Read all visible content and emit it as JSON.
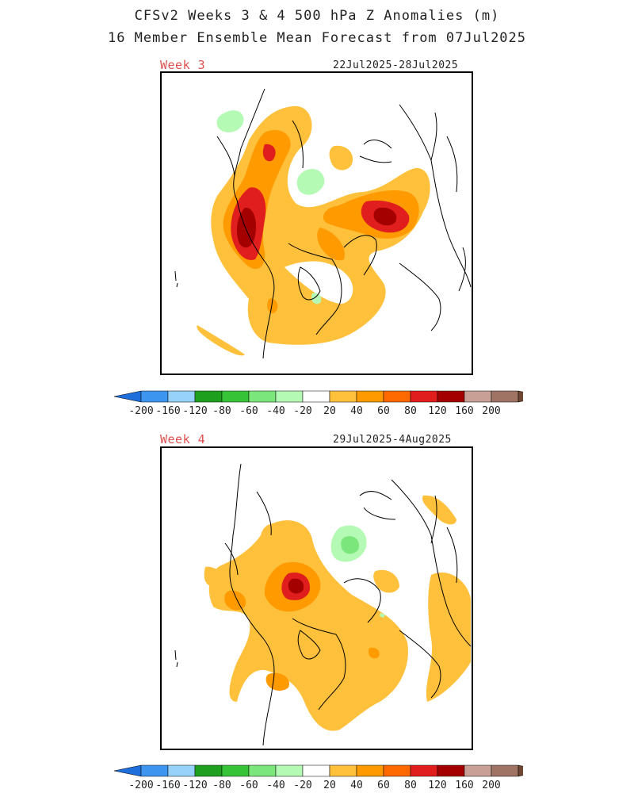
{
  "header": {
    "title_line1": "CFSv2 Weeks 3 & 4 500 hPa Z Anomalies (m)",
    "title_line2": "16 Member Ensemble Mean Forecast from 07Jul2025"
  },
  "panels": [
    {
      "label": "Week 3",
      "dates": "22Jul2025-28Jul2025"
    },
    {
      "label": "Week 4",
      "dates": "29Jul2025-4Aug2025"
    }
  ],
  "colorbar": {
    "ticks": [
      "-200",
      "-160",
      "-120",
      "-80",
      "-60",
      "-40",
      "-20",
      "20",
      "40",
      "60",
      "80",
      "120",
      "160",
      "200"
    ],
    "colors": [
      "#1e6edc",
      "#3c96f0",
      "#96d2fa",
      "#1ea01e",
      "#37c337",
      "#7be67b",
      "#b4fab4",
      "#ffffff",
      "#ffc03c",
      "#ff9a00",
      "#ff6a00",
      "#e11e1e",
      "#a50000",
      "#c8a096",
      "#a07464",
      "#6e4632"
    ]
  },
  "colors": {
    "pos20": "#ffc03c",
    "pos40": "#ff9a00",
    "pos60": "#e11e1e",
    "pos80": "#a50000",
    "neg20": "#b4fab4",
    "neg40": "#7be67b",
    "title_text": "#222222",
    "panel_label": "#e05050"
  }
}
